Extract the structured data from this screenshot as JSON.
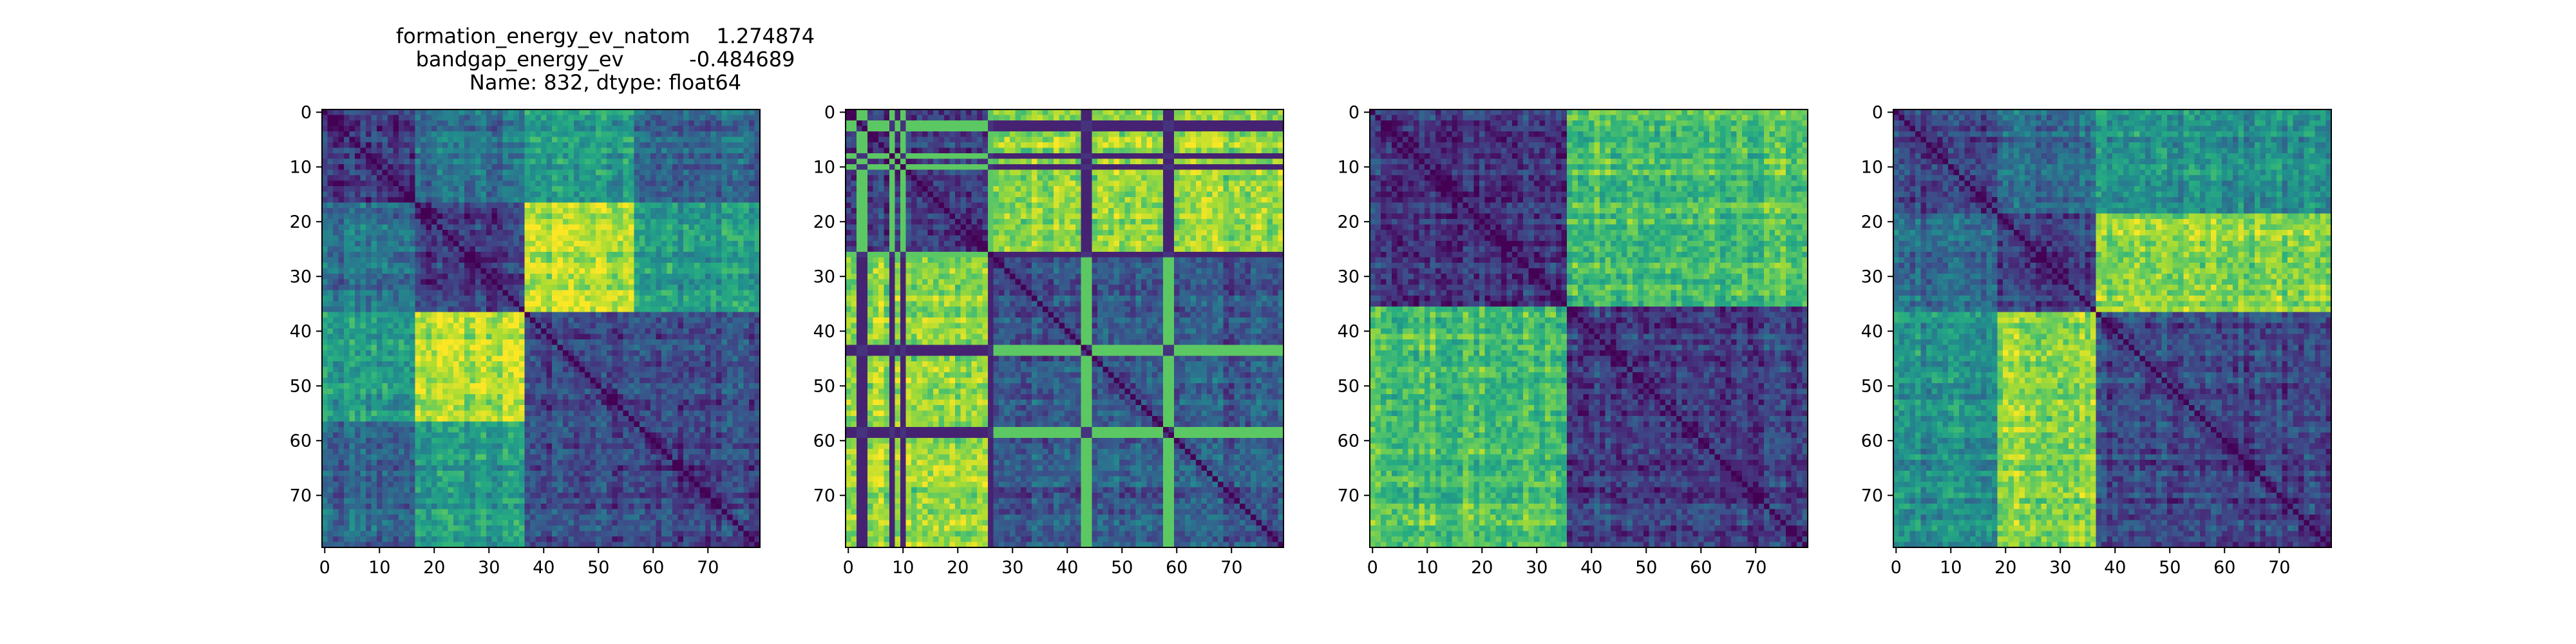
{
  "figure": {
    "title_lines": [
      "formation_energy_ev_natom    1.274874",
      "bandgap_energy_ev          -0.484689",
      "Name: 832, dtype: float64"
    ]
  },
  "chart_data": [
    {
      "type": "heatmap",
      "title": "",
      "xlabel": "",
      "ylabel": "",
      "n": 80,
      "xticks": [
        0,
        10,
        20,
        30,
        40,
        50,
        60,
        70
      ],
      "yticks": [
        0,
        10,
        20,
        30,
        40,
        50,
        60,
        70
      ],
      "colormap": "viridis",
      "diagonal": 0,
      "blocks": [
        [
          0,
          17,
          0.18
        ],
        [
          17,
          37,
          0.18
        ],
        [
          37,
          57,
          0.22
        ],
        [
          57,
          80,
          0.2
        ]
      ],
      "cross_blocks": [
        [
          0,
          1,
          0.38
        ],
        [
          0,
          2,
          0.55
        ],
        [
          0,
          3,
          0.32
        ],
        [
          1,
          2,
          0.9
        ],
        [
          1,
          3,
          0.55
        ],
        [
          2,
          3,
          0.22
        ]
      ]
    },
    {
      "type": "heatmap",
      "title": "",
      "xlabel": "",
      "ylabel": "",
      "n": 80,
      "xticks": [
        0,
        10,
        20,
        30,
        40,
        50,
        60,
        70
      ],
      "yticks": [
        0,
        10,
        20,
        30,
        40,
        50,
        60,
        70
      ],
      "colormap": "viridis",
      "diagonal": 0,
      "blocks": [
        [
          0,
          27,
          0.2
        ],
        [
          27,
          80,
          0.28
        ]
      ],
      "cross_blocks": [
        [
          0,
          1,
          0.85
        ]
      ],
      "stripes": [
        2,
        3,
        8,
        10,
        26,
        43,
        44,
        58,
        59
      ]
    },
    {
      "type": "heatmap",
      "title": "",
      "xlabel": "",
      "ylabel": "",
      "n": 80,
      "xticks": [
        0,
        10,
        20,
        30,
        40,
        50,
        60,
        70
      ],
      "yticks": [
        0,
        10,
        20,
        30,
        40,
        50,
        60,
        70
      ],
      "colormap": "viridis",
      "diagonal": 0,
      "blocks": [
        [
          0,
          36,
          0.18
        ],
        [
          36,
          80,
          0.2
        ]
      ],
      "cross_blocks": [
        [
          0,
          1,
          0.72
        ]
      ]
    },
    {
      "type": "heatmap",
      "title": "",
      "xlabel": "",
      "ylabel": "",
      "n": 80,
      "xticks": [
        0,
        10,
        20,
        30,
        40,
        50,
        60,
        70
      ],
      "yticks": [
        0,
        10,
        20,
        30,
        40,
        50,
        60,
        70
      ],
      "colormap": "viridis",
      "diagonal": 0,
      "blocks": [
        [
          0,
          19,
          0.2
        ],
        [
          19,
          37,
          0.2
        ],
        [
          37,
          80,
          0.22
        ]
      ],
      "cross_blocks": [
        [
          0,
          1,
          0.35
        ],
        [
          0,
          2,
          0.5
        ],
        [
          1,
          2,
          0.82
        ]
      ]
    }
  ]
}
